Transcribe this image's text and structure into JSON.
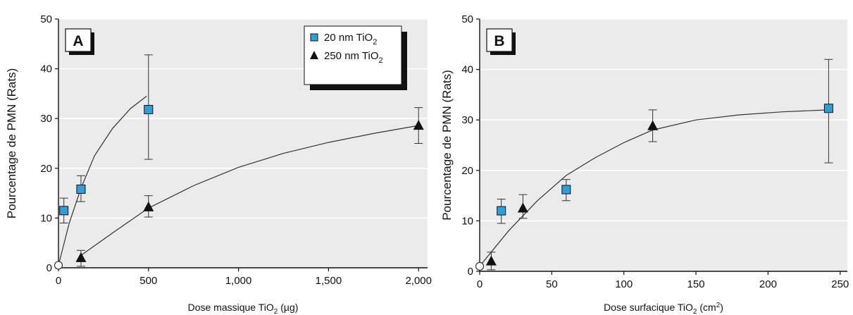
{
  "chart_data": [
    {
      "type": "scatter",
      "panel": "A",
      "ylabel": "Pourcentage de PMN (Rats)",
      "xlabel": {
        "main": "Dose massique TiO",
        "sub": "2",
        "unit": " (µg)"
      },
      "xlim": [
        0,
        2050
      ],
      "ylim": [
        0,
        50
      ],
      "xticks": [
        0,
        500,
        1000,
        1500,
        2000
      ],
      "xtick_labels": [
        "0",
        "500",
        "1,000",
        "1,500",
        "2,000"
      ],
      "yticks": [
        0,
        10,
        20,
        30,
        40,
        50
      ],
      "ytick_labels": [
        "0",
        "10",
        "20",
        "30",
        "40",
        "50"
      ],
      "grid": true,
      "legend_position": "top-right",
      "background": "#ebebeb",
      "origin_point": {
        "x": 0,
        "y": 0.5
      },
      "series": [
        {
          "name": {
            "main": "20 nm TiO",
            "sub": "2"
          },
          "marker": "square",
          "color": "#2aa0dc",
          "points": [
            {
              "x": 30,
              "y": 11.5,
              "lo": 9.0,
              "hi": 14.0
            },
            {
              "x": 125,
              "y": 15.8,
              "lo": 13.3,
              "hi": 18.5
            },
            {
              "x": 500,
              "y": 31.8,
              "lo": 21.8,
              "hi": 42.8
            }
          ],
          "curve": [
            [
              0,
              0.5
            ],
            [
              60,
              9
            ],
            [
              125,
              16
            ],
            [
              200,
              22.5
            ],
            [
              300,
              28
            ],
            [
              400,
              32
            ],
            [
              490,
              34.5
            ]
          ]
        },
        {
          "name": {
            "main": "250 nm TiO",
            "sub": "2"
          },
          "marker": "triangle",
          "color": "#111111",
          "points": [
            {
              "x": 125,
              "y": 2.0,
              "lo": 0.3,
              "hi": 3.5
            },
            {
              "x": 500,
              "y": 12.2,
              "lo": 10.2,
              "hi": 14.5
            },
            {
              "x": 2000,
              "y": 28.6,
              "lo": 25.0,
              "hi": 32.2
            }
          ],
          "curve": [
            [
              125,
              2.5
            ],
            [
              300,
              7
            ],
            [
              500,
              12
            ],
            [
              750,
              16.5
            ],
            [
              1000,
              20.2
            ],
            [
              1250,
              23
            ],
            [
              1500,
              25.2
            ],
            [
              1750,
              27
            ],
            [
              2000,
              28.6
            ]
          ]
        }
      ]
    },
    {
      "type": "scatter",
      "panel": "B",
      "ylabel": "Pourcentage de PMN (Rats)",
      "xlabel": {
        "main": "Dose surfacique TiO",
        "sub": "2",
        "unit": " (cm",
        "sup": "2",
        "end": ")"
      },
      "xlim": [
        0,
        255
      ],
      "ylim": [
        0,
        50
      ],
      "xticks": [
        0,
        50,
        100,
        150,
        200,
        250
      ],
      "xtick_labels": [
        "0",
        "50",
        "100",
        "150",
        "200",
        "250"
      ],
      "yticks": [
        0,
        10,
        20,
        30,
        40,
        50
      ],
      "ytick_labels": [
        "0",
        "10",
        "20",
        "30",
        "40",
        "50"
      ],
      "grid": true,
      "background": "#ebebeb",
      "origin_point": {
        "x": 0,
        "y": 1.0
      },
      "series": [
        {
          "marker": "square",
          "color": "#2aa0dc",
          "points": [
            {
              "x": 15,
              "y": 12.0,
              "lo": 9.5,
              "hi": 14.3
            },
            {
              "x": 60,
              "y": 16.2,
              "lo": 14.0,
              "hi": 18.2
            },
            {
              "x": 242,
              "y": 32.3,
              "lo": 21.5,
              "hi": 42.0
            }
          ]
        },
        {
          "marker": "triangle",
          "color": "#111111",
          "points": [
            {
              "x": 8,
              "y": 2.0,
              "lo": 0.3,
              "hi": 3.8
            },
            {
              "x": 30,
              "y": 12.5,
              "lo": 10.5,
              "hi": 15.2
            },
            {
              "x": 120,
              "y": 28.8,
              "lo": 25.7,
              "hi": 32.0
            }
          ]
        }
      ],
      "curve": [
        [
          0,
          1.0
        ],
        [
          20,
          8
        ],
        [
          40,
          14
        ],
        [
          60,
          19
        ],
        [
          80,
          22.5
        ],
        [
          100,
          25.5
        ],
        [
          120,
          28
        ],
        [
          150,
          30
        ],
        [
          180,
          31
        ],
        [
          210,
          31.6
        ],
        [
          242,
          32
        ]
      ]
    }
  ]
}
